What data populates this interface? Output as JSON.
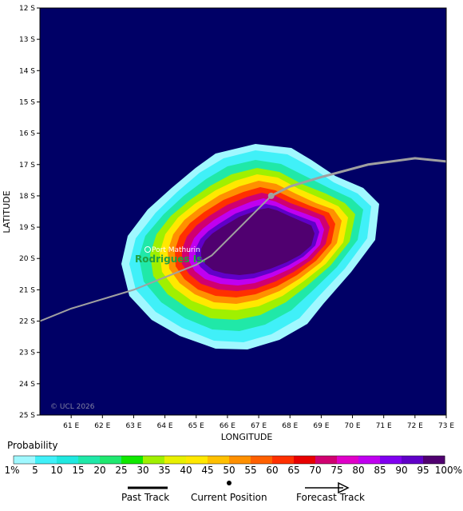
{
  "map": {
    "y_axis_title": "LATITUDE",
    "x_axis_title": "LONGITUDE",
    "lat_ticks": [
      "12 S",
      "13 S",
      "14 S",
      "15 S",
      "16 S",
      "17 S",
      "18 S",
      "19 S",
      "20 S",
      "21 S",
      "22 S",
      "23 S",
      "24 S",
      "25 S"
    ],
    "lon_ticks": [
      "61 E",
      "62 E",
      "63 E",
      "64 E",
      "65 E",
      "66 E",
      "67 E",
      "68 E",
      "69 E",
      "70 E",
      "71 E",
      "72 E",
      "73 E"
    ],
    "place_label": "Port Mathurin",
    "island_label": "Rodrigues Is.",
    "copyright": "© UCL 2026",
    "background_color": "#000066",
    "past_track": [
      [
        60.0,
        22.0
      ],
      [
        61.0,
        21.6
      ],
      [
        62.0,
        21.3
      ],
      [
        63.0,
        21.0
      ],
      [
        64.0,
        20.6
      ],
      [
        65.0,
        20.2
      ],
      [
        65.5,
        19.9
      ],
      [
        66.2,
        19.2
      ],
      [
        66.8,
        18.6
      ],
      [
        67.4,
        18.0
      ]
    ],
    "forecast_track": [
      [
        67.4,
        18.0
      ],
      [
        68.0,
        17.7
      ],
      [
        69.0,
        17.4
      ],
      [
        70.5,
        17.0
      ],
      [
        72.0,
        16.8
      ],
      [
        73.0,
        16.9
      ]
    ],
    "current_position": [
      67.4,
      18.0
    ]
  },
  "probability_scale": {
    "title": "Probability",
    "labels": [
      "1%",
      "5",
      "10",
      "15",
      "20",
      "25",
      "30",
      "35",
      "40",
      "45",
      "50",
      "55",
      "60",
      "65",
      "70",
      "75",
      "80",
      "85",
      "90",
      "95",
      "100%"
    ],
    "colors": [
      "#a0f8ff",
      "#40f0f8",
      "#20e8e0",
      "#20e8a8",
      "#20e870",
      "#10e800",
      "#a0f000",
      "#e8f000",
      "#ffe800",
      "#ffc000",
      "#ff9000",
      "#ff6000",
      "#ff3000",
      "#e80000",
      "#d00070",
      "#e000c8",
      "#c000f0",
      "#8000f0",
      "#6000c8",
      "#500070"
    ]
  },
  "legend": {
    "past_track": "Past Track",
    "current_position": "Current Position",
    "forecast_track": "Forecast Track"
  }
}
